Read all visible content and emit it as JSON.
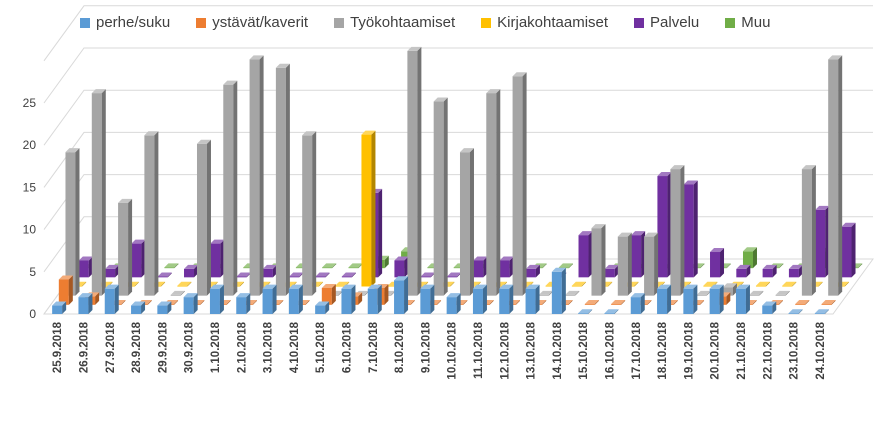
{
  "chart_data": {
    "type": "bar",
    "subtype": "3d-clustered-column",
    "ylim": [
      0,
      30
    ],
    "yticks": [
      0,
      5,
      10,
      15,
      20,
      25
    ],
    "grid": true,
    "legend_position": "top",
    "categories": [
      "25.9.2018",
      "26.9.2018",
      "27.9.2018",
      "28.9.2018",
      "29.9.2018",
      "30.9.2018",
      "1.10.2018",
      "2.10.2018",
      "3.10.2018",
      "4.10.2018",
      "5.10.2018",
      "6.10.2018",
      "7.10.2018",
      "8.10.2018",
      "9.10.2018",
      "10.10.2018",
      "11.10.2018",
      "12.10.2018",
      "13.10.2018",
      "14.10.2018",
      "15.10.2018",
      "16.10.2018",
      "17.10.2018",
      "18.10.2018",
      "19.10.2018",
      "20.10.2018",
      "21.10.2018",
      "22.10.2018",
      "23.10.2018",
      "24.10.2018"
    ],
    "series": [
      {
        "name": "perhe/suku",
        "color": "#5B9BD5",
        "values": [
          1,
          2,
          3,
          1,
          1,
          2,
          3,
          2,
          3,
          3,
          1,
          3,
          3,
          4,
          3,
          2,
          3,
          3,
          3,
          5,
          0,
          0,
          2,
          3,
          3,
          3,
          3,
          1,
          0,
          0
        ]
      },
      {
        "name": "ystävät/kaverit",
        "color": "#ED7D31",
        "values": [
          3,
          1,
          0,
          0,
          0,
          0,
          0,
          0,
          0,
          0,
          2,
          1,
          2,
          0,
          0,
          0,
          0,
          0,
          0,
          0,
          0,
          0,
          0,
          0,
          0,
          1,
          0,
          0,
          0,
          0
        ]
      },
      {
        "name": "Työkohtaamiset",
        "color": "#A5A5A5",
        "values": [
          17,
          24,
          11,
          19,
          0,
          18,
          25,
          28,
          27,
          19,
          0,
          0,
          0,
          29,
          23,
          17,
          24,
          26,
          0,
          0,
          8,
          7,
          7,
          15,
          0,
          1,
          0,
          0,
          15,
          28
        ]
      },
      {
        "name": "Kirjakohtaamiset",
        "color": "#FFC000",
        "values": [
          0,
          0,
          0,
          0,
          0,
          0,
          0,
          0,
          0,
          0,
          0,
          18,
          0,
          0,
          0,
          0,
          0,
          0,
          0,
          0,
          0,
          0,
          0,
          0,
          0,
          0,
          0,
          0,
          0,
          0
        ]
      },
      {
        "name": "Palvelu",
        "color": "#7030A0",
        "values": [
          2,
          1,
          4,
          0,
          1,
          4,
          0,
          1,
          0,
          0,
          0,
          10,
          2,
          0,
          0,
          2,
          2,
          1,
          0,
          5,
          1,
          5,
          12,
          11,
          3,
          1,
          1,
          1,
          8,
          6
        ]
      },
      {
        "name": "Muu",
        "color": "#70AD47",
        "values": [
          0,
          0,
          0,
          0,
          0,
          0,
          0,
          0,
          0,
          0,
          0,
          1,
          2,
          0,
          0,
          0,
          0,
          0,
          0,
          1,
          0,
          0,
          0,
          0,
          0,
          2,
          0,
          0,
          2,
          0
        ]
      }
    ]
  }
}
